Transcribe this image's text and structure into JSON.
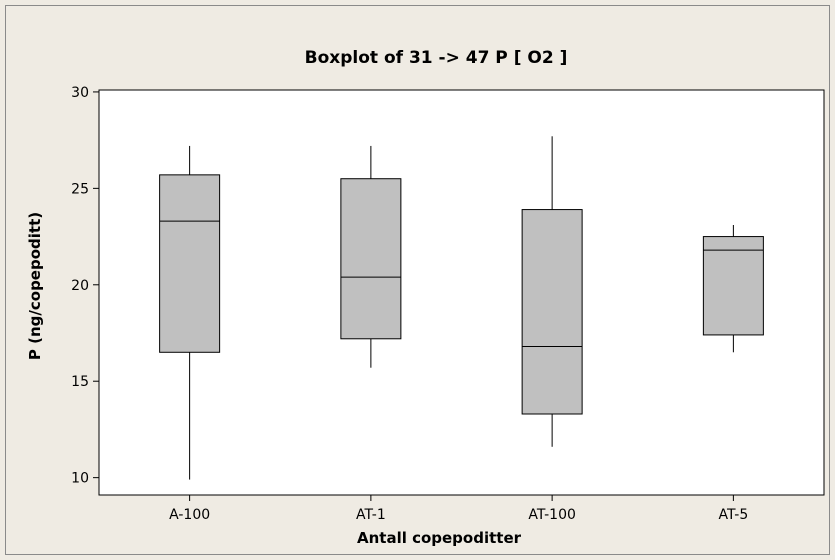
{
  "chart_data": {
    "type": "boxplot",
    "title": "Boxplot of 31 -> 47  P  [ O2 ]",
    "xlabel": "Antall copepoditter",
    "ylabel": "P (ng/copepoditt)",
    "ylim": [
      9.1,
      30.1
    ],
    "yticks": [
      10,
      15,
      20,
      25,
      30
    ],
    "categories": [
      "A-100",
      "AT-1",
      "AT-100",
      "AT-5"
    ],
    "boxes": [
      {
        "category": "A-100",
        "whisker_low": 9.9,
        "q1": 16.5,
        "median": 23.3,
        "q3": 25.7,
        "whisker_high": 27.2
      },
      {
        "category": "AT-1",
        "whisker_low": 15.7,
        "q1": 17.2,
        "median": 20.4,
        "q3": 25.5,
        "whisker_high": 27.2
      },
      {
        "category": "AT-100",
        "whisker_low": 11.6,
        "q1": 13.3,
        "median": 16.8,
        "q3": 23.9,
        "whisker_high": 27.7
      },
      {
        "category": "AT-5",
        "whisker_low": 16.5,
        "q1": 17.4,
        "median": 21.8,
        "q3": 22.5,
        "whisker_high": 23.1
      }
    ],
    "grid": false,
    "box_fill": "#c0c0c0",
    "plot_background": "#ffffff",
    "figure_background": "#efebe3"
  }
}
